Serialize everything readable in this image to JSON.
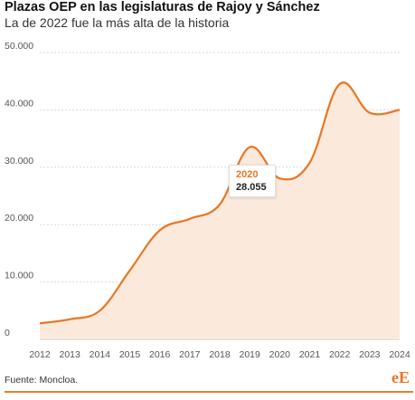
{
  "header": {
    "title": "Plazas OEP en las legislaturas de Rajoy y Sánchez",
    "subtitle": "La de 2022 fue la más alta de la historia"
  },
  "footer": {
    "source": "Fuente: Moncloa.",
    "logo": "eE"
  },
  "tooltip": {
    "year": "2020",
    "value": "28.055"
  },
  "colors": {
    "line": "#e87722",
    "area": "#fbe9dc",
    "grid": "#d9d9d9"
  },
  "chart_data": {
    "type": "area",
    "title": "Plazas OEP en las legislaturas de Rajoy y Sánchez",
    "subtitle": "La de 2022 fue la más alta de la historia",
    "xlabel": "",
    "ylabel": "",
    "x_ticks": [
      "2012",
      "2013",
      "2014",
      "2015",
      "2016",
      "2017",
      "2018",
      "2019",
      "2020",
      "2021",
      "2022",
      "2023",
      "2024"
    ],
    "y_ticks": [
      "0",
      "10.000",
      "20.000",
      "30.000",
      "40.000",
      "50.000"
    ],
    "y_tick_values": [
      0,
      10000,
      20000,
      30000,
      40000,
      50000
    ],
    "ylim": [
      0,
      50000
    ],
    "xlim": [
      2012,
      2024
    ],
    "grid": true,
    "series": [
      {
        "x": [
          2012,
          2013,
          2014,
          2015,
          2016,
          2017,
          2018,
          2019,
          2020,
          2021,
          2022,
          2023,
          2024
        ],
        "values": [
          2800,
          3500,
          5000,
          12000,
          19000,
          21000,
          23500,
          33500,
          28055,
          30800,
          44500,
          39500,
          40000
        ]
      }
    ]
  }
}
